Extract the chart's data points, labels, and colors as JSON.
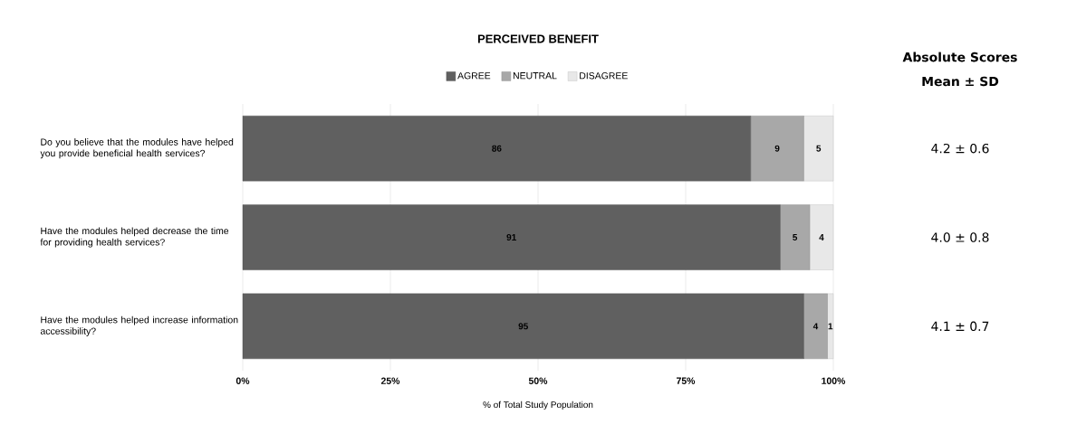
{
  "chart_data": {
    "type": "bar",
    "orientation": "horizontal",
    "stacked": true,
    "title": "PERCEIVED BENEFIT",
    "xlabel": "% of Total Study Population",
    "categories": [
      "Do you believe that the modules have helped you provide beneficial health services?",
      "Have the modules helped decrease the time for providing health services?",
      "Have the modules helped increase information accessibility?"
    ],
    "series": [
      {
        "name": "AGREE",
        "color": "#606060",
        "values": [
          86,
          91,
          95
        ]
      },
      {
        "name": "NEUTRAL",
        "color": "#a8a8a8",
        "values": [
          9,
          5,
          4
        ]
      },
      {
        "name": "DISAGREE",
        "color": "#e8e8e8",
        "values": [
          5,
          4,
          1
        ]
      }
    ],
    "xlim": [
      0,
      100
    ],
    "xticks": [
      {
        "value": 0,
        "label": "0%"
      },
      {
        "value": 25,
        "label": "25%"
      },
      {
        "value": 50,
        "label": "50%"
      },
      {
        "value": 75,
        "label": "75%"
      },
      {
        "value": 100,
        "label": "100%"
      }
    ],
    "grid": "x",
    "legend": "top",
    "data_labels": true,
    "annotations": [
      "Absolute Scores",
      "Mean ± SD",
      "4.2 ± 0.6",
      "4.0 ± 0.8",
      "4.1 ± 0.7"
    ]
  }
}
